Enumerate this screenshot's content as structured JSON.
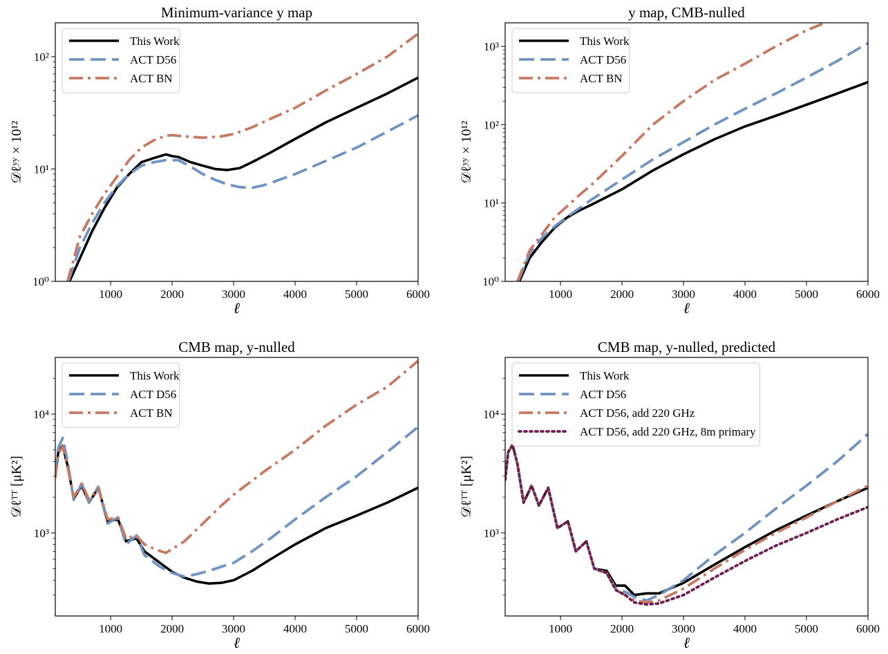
{
  "figure": {
    "background": "#ffffff",
    "colors": {
      "this_work": "#000000",
      "act_d56": "#7093c1",
      "act_bn": "#c67a63",
      "eightm": "#6b1f50"
    }
  },
  "chart_data": [
    {
      "type": "line",
      "title": "Minimum-variance y map",
      "xlabel": "ℓ",
      "ylabel": "𝒟ℓʸʸ × 10¹²",
      "xlim": [
        100,
        6000
      ],
      "ylim": [
        1,
        200
      ],
      "yscale": "log",
      "xticks": [
        1000,
        2000,
        3000,
        4000,
        5000,
        6000
      ],
      "yticks": [
        1,
        10,
        100
      ],
      "ytick_labels": [
        "10⁰",
        "10¹",
        "10²"
      ],
      "legend": "top-left",
      "grid": false,
      "series": [
        {
          "name": "This Work",
          "color": "#000000",
          "dash": "solid",
          "x": [
            330,
            500,
            700,
            900,
            1100,
            1300,
            1500,
            1700,
            1900,
            2000,
            2100,
            2300,
            2500,
            2700,
            2900,
            3100,
            3300,
            3600,
            4000,
            4500,
            5000,
            5500,
            6000
          ],
          "y": [
            1.0,
            1.6,
            2.8,
            4.5,
            6.8,
            9.0,
            11.5,
            12.5,
            13.5,
            13.0,
            12.8,
            11.5,
            10.7,
            10.0,
            9.8,
            10.2,
            11.5,
            14.0,
            18.5,
            26.0,
            35.0,
            47.0,
            65.0
          ]
        },
        {
          "name": "ACT D56",
          "color": "#7093c1",
          "dash": "dashed",
          "x": [
            310,
            500,
            700,
            900,
            1100,
            1300,
            1500,
            1700,
            1900,
            2100,
            2300,
            2500,
            2700,
            2900,
            3100,
            3300,
            3500,
            4000,
            4500,
            5000,
            5500,
            6000
          ],
          "y": [
            1.0,
            2.0,
            3.3,
            5.0,
            7.0,
            9.0,
            10.7,
            11.5,
            12.0,
            12.0,
            10.5,
            9.0,
            8.0,
            7.3,
            6.9,
            6.8,
            7.2,
            9.0,
            11.8,
            15.5,
            21.5,
            30.0
          ]
        },
        {
          "name": "ACT BN",
          "color": "#c67a63",
          "dash": "dashdot",
          "x": [
            300,
            500,
            700,
            900,
            1100,
            1300,
            1500,
            1700,
            1900,
            2000,
            2200,
            2500,
            2800,
            3000,
            3300,
            3600,
            4000,
            4500,
            5000,
            5500,
            6000
          ],
          "y": [
            1.0,
            2.5,
            4.0,
            6.0,
            8.5,
            12.0,
            15.5,
            18.0,
            19.8,
            20.0,
            19.5,
            19.0,
            19.5,
            20.5,
            23.5,
            28.0,
            35.0,
            50.0,
            70.0,
            100.0,
            160.0
          ]
        }
      ]
    },
    {
      "type": "line",
      "title": "y map, CMB-nulled",
      "xlabel": "ℓ",
      "ylabel": "𝒟ℓʸʸ × 10¹²",
      "xlim": [
        100,
        6000
      ],
      "ylim": [
        1,
        2000
      ],
      "yscale": "log",
      "xticks": [
        1000,
        2000,
        3000,
        4000,
        5000,
        6000
      ],
      "yticks": [
        1,
        10,
        100,
        1000
      ],
      "ytick_labels": [
        "10⁰",
        "10¹",
        "10²",
        "10³"
      ],
      "legend": "top-left",
      "grid": false,
      "series": [
        {
          "name": "This Work",
          "color": "#000000",
          "dash": "solid",
          "x": [
            330,
            500,
            700,
            900,
            1100,
            1300,
            1500,
            2000,
            2500,
            3000,
            3500,
            4000,
            4500,
            5000,
            5500,
            6000
          ],
          "y": [
            1.0,
            2.0,
            3.2,
            4.8,
            6.5,
            8.0,
            9.5,
            15.0,
            26.0,
            42.0,
            65.0,
            95.0,
            130.0,
            180.0,
            250.0,
            350.0
          ]
        },
        {
          "name": "ACT D56",
          "color": "#7093c1",
          "dash": "dashed",
          "x": [
            310,
            500,
            700,
            900,
            1100,
            1300,
            1500,
            2000,
            2500,
            3000,
            3500,
            4000,
            4500,
            5000,
            5500,
            6000
          ],
          "y": [
            1.0,
            2.3,
            3.6,
            5.0,
            6.6,
            8.5,
            11.0,
            20.0,
            36.0,
            60.0,
            100.0,
            160.0,
            250.0,
            400.0,
            650.0,
            1100.0
          ]
        },
        {
          "name": "ACT BN",
          "color": "#c67a63",
          "dash": "dashdot",
          "x": [
            300,
            500,
            700,
            900,
            1100,
            1300,
            1500,
            2000,
            2500,
            3000,
            3500,
            4000,
            4500,
            5000,
            5300
          ],
          "y": [
            1.0,
            2.5,
            4.0,
            6.5,
            9.0,
            12.5,
            17.0,
            40.0,
            100.0,
            200.0,
            370.0,
            600.0,
            1000.0,
            1600.0,
            2000.0
          ]
        }
      ]
    },
    {
      "type": "line",
      "title": "CMB map, y-nulled",
      "xlabel": "ℓ",
      "ylabel": "𝒟ℓᵀᵀ [μK²]",
      "xlim": [
        100,
        6000
      ],
      "ylim": [
        200,
        30000
      ],
      "yscale": "log",
      "xticks": [
        1000,
        2000,
        3000,
        4000,
        5000,
        6000
      ],
      "yticks": [
        1000,
        10000
      ],
      "ytick_labels": [
        "10³",
        "10⁴"
      ],
      "legend": "top-left",
      "grid": false,
      "series": [
        {
          "name": "This Work",
          "color": "#000000",
          "dash": "solid",
          "x": [
            100,
            150,
            220,
            300,
            400,
            530,
            650,
            800,
            950,
            1120,
            1250,
            1420,
            1550,
            1800,
            2000,
            2200,
            2400,
            2600,
            2800,
            3000,
            3300,
            3600,
            4000,
            4500,
            5000,
            5500,
            6000
          ],
          "y": [
            3000,
            4800,
            5400,
            3700,
            1950,
            2500,
            1800,
            2400,
            1250,
            1300,
            850,
            900,
            700,
            560,
            470,
            420,
            390,
            375,
            380,
            400,
            480,
            600,
            800,
            1100,
            1400,
            1800,
            2400
          ]
        },
        {
          "name": "ACT D56",
          "color": "#7093c1",
          "dash": "dashed",
          "x": [
            100,
            150,
            220,
            300,
            400,
            530,
            650,
            800,
            950,
            1120,
            1250,
            1420,
            1550,
            1800,
            2000,
            2200,
            2400,
            2600,
            2800,
            3000,
            3300,
            3600,
            4000,
            4500,
            5000,
            5500,
            6000
          ],
          "y": [
            3200,
            5200,
            6300,
            4000,
            1900,
            2600,
            1800,
            2450,
            1200,
            1350,
            800,
            950,
            650,
            520,
            460,
            430,
            450,
            480,
            520,
            560,
            700,
            900,
            1300,
            2000,
            3000,
            4800,
            7800
          ]
        },
        {
          "name": "ACT BN",
          "color": "#c67a63",
          "dash": "dashdot",
          "x": [
            100,
            150,
            220,
            300,
            400,
            530,
            650,
            800,
            950,
            1120,
            1250,
            1420,
            1550,
            1750,
            1900,
            2200,
            2500,
            2800,
            3000,
            3500,
            4000,
            4500,
            5000,
            5500,
            6000
          ],
          "y": [
            2900,
            4700,
            5300,
            3600,
            2000,
            2600,
            1900,
            2400,
            1300,
            1350,
            900,
            950,
            800,
            720,
            680,
            850,
            1200,
            1700,
            2100,
            3300,
            5000,
            8000,
            12000,
            17000,
            28000
          ]
        }
      ]
    },
    {
      "type": "line",
      "title": "CMB map, y-nulled, predicted",
      "xlabel": "ℓ",
      "ylabel": "𝒟ℓᵀᵀ [μK²]",
      "xlim": [
        100,
        6000
      ],
      "ylim": [
        200,
        30000
      ],
      "yscale": "log",
      "xticks": [
        1000,
        2000,
        3000,
        4000,
        5000,
        6000
      ],
      "yticks": [
        1000,
        10000
      ],
      "ytick_labels": [
        "10³",
        "10⁴"
      ],
      "legend": "top-left",
      "grid": false,
      "series": [
        {
          "name": "This Work",
          "color": "#000000",
          "dash": "solid",
          "x": [
            100,
            150,
            220,
            300,
            400,
            530,
            650,
            800,
            950,
            1120,
            1250,
            1420,
            1550,
            1750,
            1900,
            2050,
            2200,
            2400,
            2600,
            3000,
            3500,
            4000,
            4500,
            5000,
            5500,
            6000
          ],
          "y": [
            2800,
            4800,
            5500,
            3800,
            1800,
            2500,
            1700,
            2400,
            1100,
            1250,
            700,
            850,
            500,
            480,
            360,
            360,
            300,
            310,
            310,
            380,
            540,
            760,
            1050,
            1400,
            1850,
            2400
          ]
        },
        {
          "name": "ACT D56",
          "color": "#7093c1",
          "dash": "dashed",
          "x": [
            100,
            150,
            220,
            300,
            400,
            530,
            650,
            800,
            950,
            1120,
            1250,
            1420,
            1550,
            1750,
            1900,
            2050,
            2200,
            2400,
            2600,
            3000,
            3500,
            4000,
            4500,
            5000,
            5500,
            6000
          ],
          "y": [
            2800,
            4800,
            5500,
            3800,
            1800,
            2500,
            1700,
            2400,
            1100,
            1250,
            700,
            850,
            500,
            460,
            340,
            320,
            290,
            270,
            300,
            400,
            650,
            1000,
            1600,
            2500,
            4000,
            6800
          ]
        },
        {
          "name": "ACT D56, add 220 GHz",
          "color": "#c67a63",
          "dash": "dashdot",
          "x": [
            100,
            150,
            220,
            300,
            400,
            530,
            650,
            800,
            950,
            1120,
            1250,
            1420,
            1550,
            1750,
            1900,
            2050,
            2200,
            2400,
            2600,
            3000,
            3500,
            4000,
            4500,
            5000,
            5500,
            6000
          ],
          "y": [
            2800,
            4800,
            5500,
            3800,
            1800,
            2500,
            1700,
            2400,
            1100,
            1250,
            700,
            850,
            500,
            460,
            330,
            300,
            270,
            260,
            270,
            340,
            500,
            720,
            1000,
            1350,
            1850,
            2500
          ]
        },
        {
          "name": "ACT D56, add 220 GHz, 8m primary",
          "color": "#6b1f50",
          "dash": "dotted",
          "x": [
            100,
            150,
            220,
            300,
            400,
            530,
            650,
            800,
            950,
            1120,
            1250,
            1420,
            1550,
            1750,
            1900,
            2050,
            2200,
            2400,
            2600,
            3000,
            3500,
            4000,
            4500,
            5000,
            5500,
            6000
          ],
          "y": [
            2800,
            4800,
            5500,
            3800,
            1800,
            2500,
            1700,
            2400,
            1100,
            1250,
            700,
            850,
            500,
            460,
            330,
            300,
            260,
            250,
            255,
            300,
            420,
            580,
            780,
            1000,
            1300,
            1650
          ]
        }
      ]
    }
  ]
}
